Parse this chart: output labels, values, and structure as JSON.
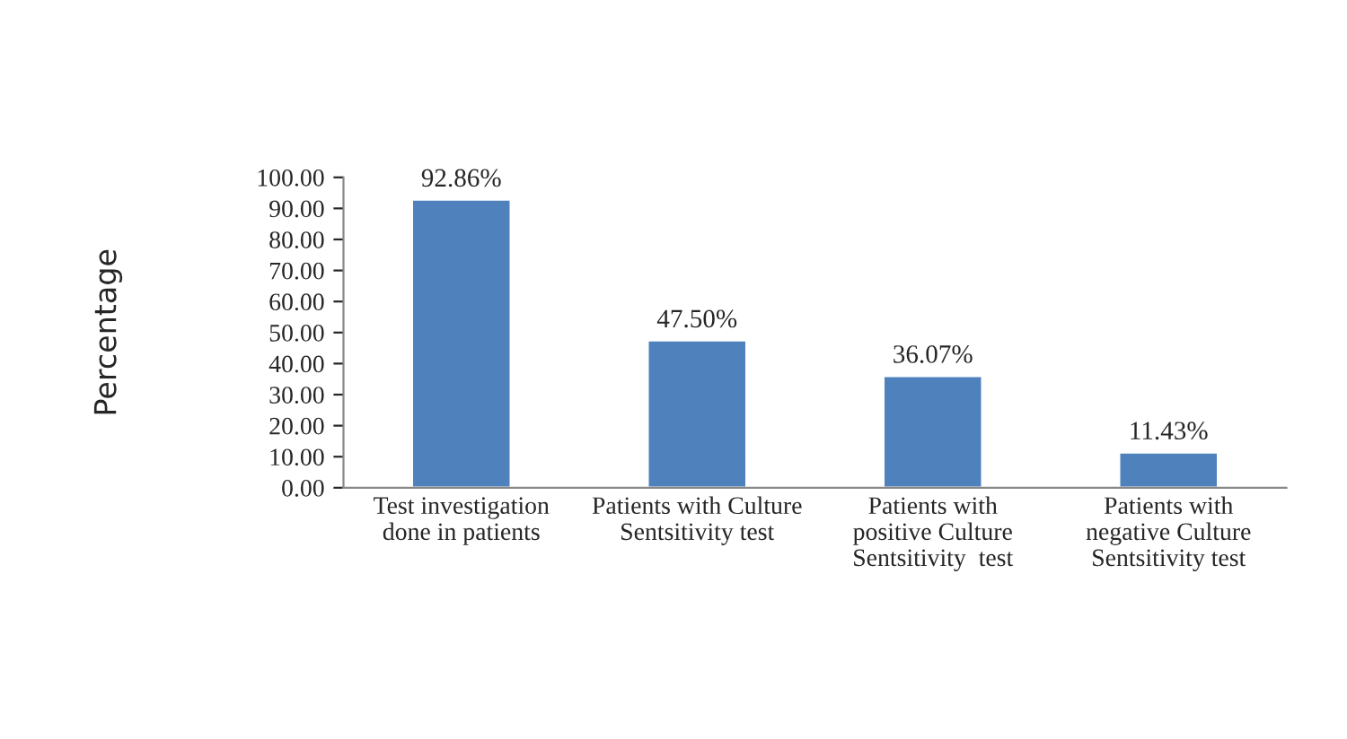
{
  "chart_data": {
    "type": "bar",
    "ylabel": "Percentage",
    "categories": [
      "Test investigation\ndone in patients",
      "Patients with Culture\nSentsitivity test",
      "Patients with\npositive Culture\nSentsitivity  test",
      "Patients with\nnegative Culture\nSentsitivity test"
    ],
    "values": [
      92.86,
      47.5,
      36.07,
      11.43
    ],
    "value_labels": [
      "92.86%",
      "47.50%",
      "36.07%",
      "11.43%"
    ],
    "color": "#4f81bd",
    "ylim": [
      0,
      100
    ],
    "yticks": [
      {
        "value": 0,
        "label": "0.00"
      },
      {
        "value": 10,
        "label": "10.00"
      },
      {
        "value": 20,
        "label": "20.00"
      },
      {
        "value": 30,
        "label": "30.00"
      },
      {
        "value": 40,
        "label": "40.00"
      },
      {
        "value": 50,
        "label": "50.00"
      },
      {
        "value": 60,
        "label": "60.00"
      },
      {
        "value": 70,
        "label": "70.00"
      },
      {
        "value": 80,
        "label": "80.00"
      },
      {
        "value": 90,
        "label": "90.00"
      },
      {
        "value": 100,
        "label": "100.00"
      }
    ],
    "grid": false
  }
}
